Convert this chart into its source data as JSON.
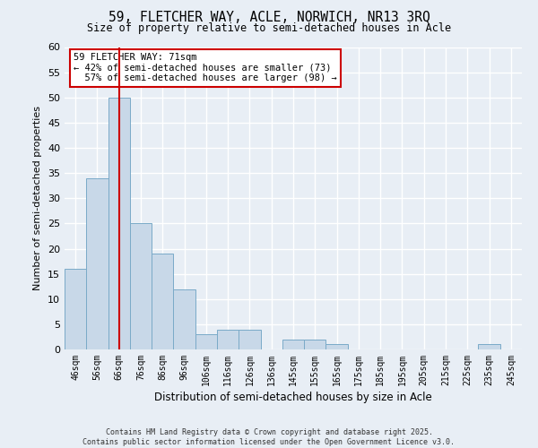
{
  "title": "59, FLETCHER WAY, ACLE, NORWICH, NR13 3RQ",
  "subtitle": "Size of property relative to semi-detached houses in Acle",
  "xlabel": "Distribution of semi-detached houses by size in Acle",
  "ylabel": "Number of semi-detached properties",
  "bar_color": "#c8d8e8",
  "bar_edge_color": "#7aaac8",
  "background_color": "#e8eef5",
  "grid_color": "#ffffff",
  "categories": [
    "46sqm",
    "56sqm",
    "66sqm",
    "76sqm",
    "86sqm",
    "96sqm",
    "106sqm",
    "116sqm",
    "126sqm",
    "136sqm",
    "145sqm",
    "155sqm",
    "165sqm",
    "175sqm",
    "185sqm",
    "195sqm",
    "205sqm",
    "215sqm",
    "225sqm",
    "235sqm",
    "245sqm"
  ],
  "values": [
    16,
    34,
    50,
    25,
    19,
    12,
    3,
    4,
    4,
    0,
    2,
    2,
    1,
    0,
    0,
    0,
    0,
    0,
    0,
    1,
    0
  ],
  "property_label": "59 FLETCHER WAY: 71sqm",
  "pct_smaller": 42,
  "pct_larger": 57,
  "n_smaller": 73,
  "n_larger": 98,
  "vline_x": 2.0,
  "ylim": [
    0,
    60
  ],
  "yticks": [
    0,
    5,
    10,
    15,
    20,
    25,
    30,
    35,
    40,
    45,
    50,
    55,
    60
  ],
  "annotation_box_color": "#cc0000",
  "footer_line1": "Contains HM Land Registry data © Crown copyright and database right 2025.",
  "footer_line2": "Contains public sector information licensed under the Open Government Licence v3.0."
}
